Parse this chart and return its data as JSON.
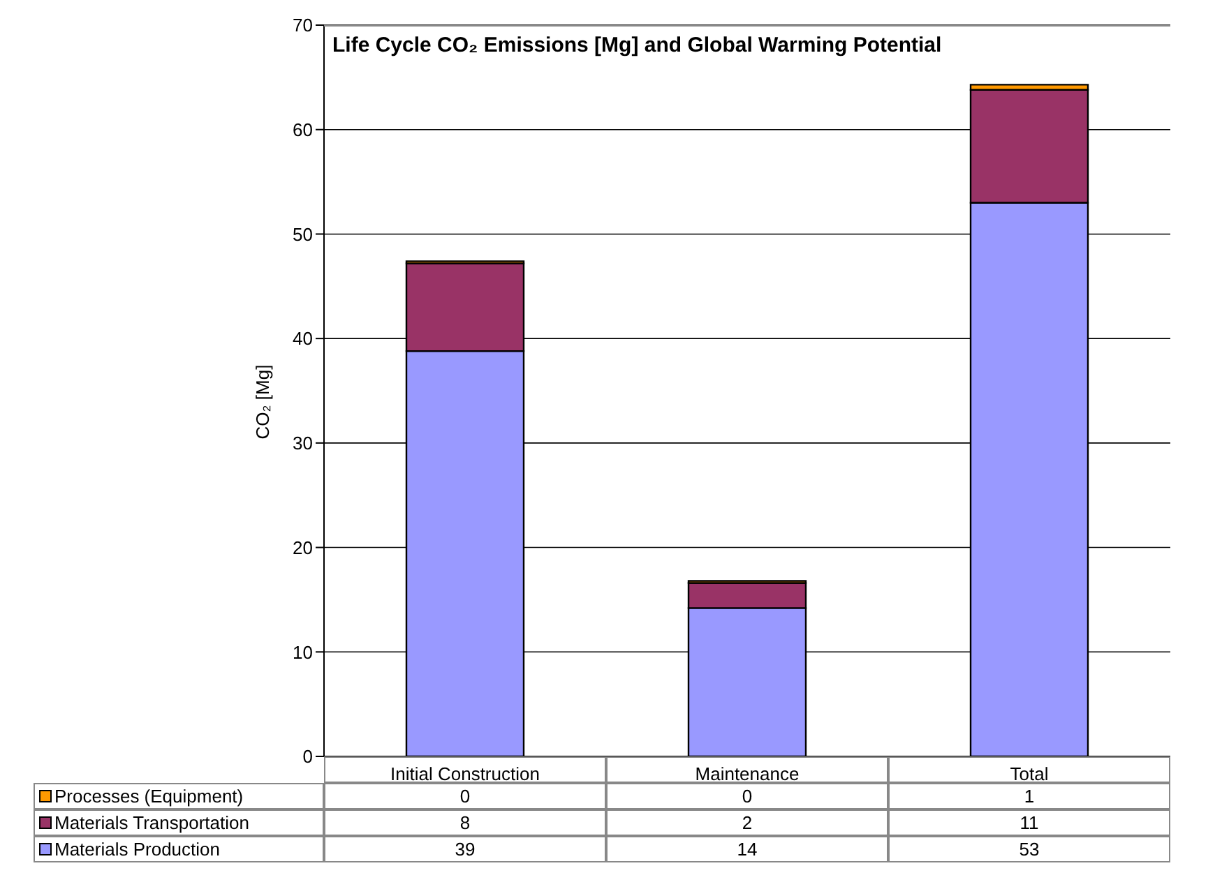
{
  "chart_data": {
    "type": "bar",
    "title": "Life Cycle CO₂ Emissions [Mg] and Global Warming Potential",
    "ylabel": "CO₂ [Mg]",
    "categories": [
      "Initial Construction",
      "Maintenance",
      "Total"
    ],
    "stacked": true,
    "ylim": [
      0,
      70
    ],
    "yticks": [
      0,
      10,
      20,
      30,
      40,
      50,
      60,
      70
    ],
    "grid": "y",
    "legend": "bottom",
    "series": [
      {
        "name": "Materials Production",
        "color": "#9999ff",
        "values": [
          38.8,
          14.2,
          53.0
        ],
        "value_labels": [
          "39",
          "14",
          "53"
        ]
      },
      {
        "name": "Materials Transportation",
        "color": "#993366",
        "values": [
          8.4,
          2.4,
          10.8
        ],
        "value_labels": [
          "8",
          "2",
          "11"
        ]
      },
      {
        "name": "Processes (Equipment)",
        "color": "#ff9900",
        "values": [
          0.2,
          0.2,
          0.5
        ],
        "value_labels": [
          "0",
          "0",
          "1"
        ]
      }
    ]
  }
}
